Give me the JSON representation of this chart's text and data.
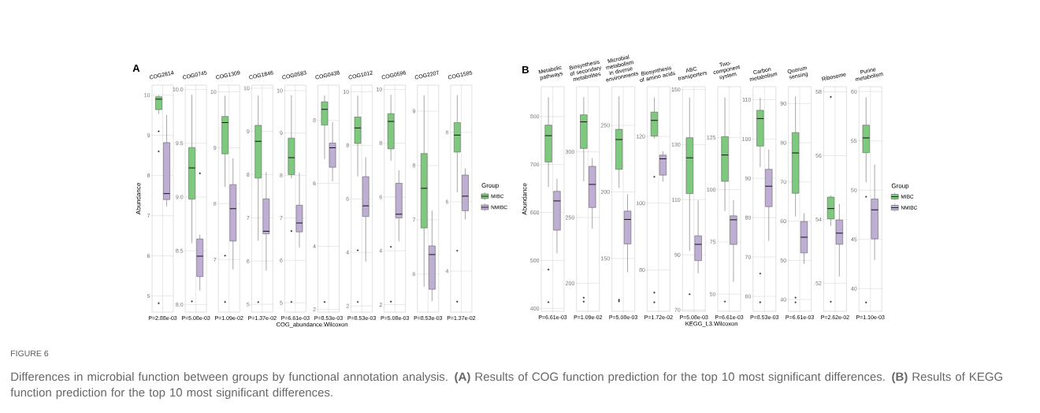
{
  "chart_data": [
    {
      "type": "box",
      "title": "COG2814",
      "ylabel": "Abundance",
      "annotations": [
        "A",
        "FIGURE 6",
        "Differences in microbial function between groups by functional annotation analysis. **(A)** Results of COG function prediction for the top 10 most significant differences. **(B)** Results of KEGG function prediction for the top 10 most significant differences."
      ],
      "categories": [
        "P=2.88e-03"
      ],
      "ylim": [
        4.6,
        10.25
      ],
      "yticks": [
        5,
        6,
        7,
        8,
        9,
        10
      ],
      "grid": true,
      "series": [
        {
          "color": "#7fc97f",
          "boxes": [
            {
              "low": 9.53,
              "q1": 9.64,
              "median": 9.9,
              "q3": 9.96,
              "high": 10.0,
              "outliers": [
                9.1,
                8.6,
                4.82
              ]
            }
          ]
        },
        {
          "color": "#beaed4",
          "boxes": [
            {
              "low": 7.23,
              "q1": 7.4,
              "median": 7.55,
              "q3": 8.82,
              "high": 9.51
            }
          ]
        }
      ]
    },
    {
      "type": "box",
      "title": "COG0745",
      "categories": [
        "P=5.08e-03"
      ],
      "ylim": [
        7.93,
        10.04
      ],
      "yticks": [
        {
          "value": 8,
          "label": "8.0"
        },
        {
          "value": 8.5,
          "label": "8.5"
        },
        {
          "value": 9,
          "label": "9.0"
        },
        {
          "value": 9.5,
          "label": "9.5"
        },
        {
          "value": 10,
          "label": "10.0"
        }
      ],
      "grid": true,
      "series": [
        {
          "color": "#7fc97f",
          "boxes": [
            {
              "low": 8.57,
              "q1": 8.98,
              "median": 9.27,
              "q3": 9.46,
              "high": 9.95,
              "outliers": [
                8.03
              ]
            }
          ]
        },
        {
          "color": "#beaed4",
          "boxes": [
            {
              "low": 8.13,
              "q1": 8.26,
              "median": 8.45,
              "q3": 8.61,
              "high": 8.65,
              "outliers": [
                9.22
              ]
            }
          ]
        }
      ]
    },
    {
      "type": "box",
      "title": "COG1309",
      "categories": [
        "P=1.09e-02"
      ],
      "ylim": [
        6.06,
        10.12
      ],
      "yticks": [
        7,
        8,
        9,
        10
      ],
      "grid": true,
      "series": [
        {
          "color": "#7fc97f",
          "boxes": [
            {
              "low": 8.3,
              "q1": 8.89,
              "median": 9.45,
              "q3": 9.56,
              "high": 9.93,
              "outliers": [
                7.07,
                6.24
              ]
            }
          ]
        },
        {
          "color": "#beaed4",
          "boxes": [
            {
              "low": 6.82,
              "q1": 7.33,
              "median": 7.91,
              "q3": 8.34,
              "high": 8.81
            }
          ]
        }
      ]
    },
    {
      "type": "box",
      "title": "COG1846",
      "categories": [
        "P=1.37e-02"
      ],
      "ylim": [
        4.82,
        10.07
      ],
      "yticks": [
        5,
        6,
        7,
        8,
        9,
        10
      ],
      "grid": true,
      "series": [
        {
          "color": "#7fc97f",
          "boxes": [
            {
              "low": 6.47,
              "q1": 7.92,
              "median": 8.77,
              "q3": 9.14,
              "high": 9.83,
              "outliers": [
                5.05
              ]
            }
          ]
        },
        {
          "color": "#beaed4",
          "boxes": [
            {
              "low": 5.78,
              "q1": 6.63,
              "median": 6.69,
              "q3": 7.44,
              "high": 8.06
            }
          ]
        }
      ]
    },
    {
      "type": "box",
      "title": "COG0583",
      "xlabel": "COG_abundance.Wilcoxon",
      "categories": [
        "P=6.61e-03"
      ],
      "ylim": [
        4.78,
        10.13
      ],
      "yticks": [
        5,
        6,
        7,
        8,
        9,
        10
      ],
      "grid": true,
      "series": [
        {
          "color": "#7fc97f",
          "boxes": [
            {
              "low": 7.93,
              "q1": 8.02,
              "median": 8.42,
              "q3": 8.88,
              "high": 9.89,
              "outliers": [
                6.69,
                5.02
              ]
            }
          ]
        },
        {
          "color": "#beaed4",
          "boxes": [
            {
              "low": 6.3,
              "q1": 6.67,
              "median": 6.88,
              "q3": 7.3,
              "high": 8.07
            }
          ]
        }
      ]
    },
    {
      "type": "box",
      "title": "COG0438",
      "categories": [
        "P=8.53e-03"
      ],
      "ylim": [
        1.91,
        9.12
      ],
      "yticks": [
        2,
        4,
        6,
        8
      ],
      "grid": true,
      "series": [
        {
          "color": "#7fc97f",
          "boxes": [
            {
              "low": 6.77,
              "q1": 7.85,
              "median": 8.35,
              "q3": 8.59,
              "high": 8.79,
              "outliers": [
                2.23
              ]
            }
          ]
        },
        {
          "color": "#beaed4",
          "boxes": [
            {
              "low": 6.06,
              "q1": 6.51,
              "median": 7.13,
              "q3": 7.28,
              "high": 7.95
            }
          ]
        }
      ]
    },
    {
      "type": "box",
      "title": "COG1012",
      "categories": [
        "P=8.53e-03"
      ],
      "ylim": [
        1.77,
        10.25
      ],
      "yticks": [
        2,
        4,
        6,
        8,
        10
      ],
      "grid": true,
      "series": [
        {
          "color": "#7fc97f",
          "boxes": [
            {
              "low": 6.84,
              "q1": 8.07,
              "median": 8.65,
              "q3": 9.06,
              "high": 9.86,
              "outliers": [
                4.08,
                2.15
              ]
            }
          ]
        },
        {
          "color": "#beaed4",
          "boxes": [
            {
              "low": 3.65,
              "q1": 5.34,
              "median": 5.74,
              "q3": 6.83,
              "high": 7.56
            }
          ]
        }
      ]
    },
    {
      "type": "box",
      "title": "COG0596",
      "categories": [
        "P=5.08e-03"
      ],
      "ylim": [
        1.72,
        10.16
      ],
      "yticks": [
        2,
        4,
        6,
        8,
        10
      ],
      "grid": true,
      "series": [
        {
          "color": "#7fc97f",
          "boxes": [
            {
              "low": 7.35,
              "q1": 7.79,
              "median": 8.81,
              "q3": 9.1,
              "high": 9.8,
              "outliers": [
                4.15,
                2.11
              ]
            }
          ]
        },
        {
          "color": "#beaed4",
          "boxes": [
            {
              "low": 4.35,
              "q1": 5.22,
              "median": 5.36,
              "q3": 6.51,
              "high": 7.0
            }
          ]
        }
      ]
    },
    {
      "type": "box",
      "title": "COG2207",
      "categories": [
        "P=8.53e-03"
      ],
      "ylim": [
        5.3,
        9.48
      ],
      "yticks": [
        6,
        7,
        8,
        9
      ],
      "grid": true,
      "series": [
        {
          "color": "#7fc97f",
          "boxes": [
            {
              "low": 5.77,
              "q1": 6.85,
              "median": 7.58,
              "q3": 8.22,
              "high": 9.29
            }
          ]
        },
        {
          "color": "#beaed4",
          "boxes": [
            {
              "low": 5.5,
              "q1": 5.72,
              "median": 6.36,
              "q3": 6.52,
              "high": 7.17
            }
          ]
        }
      ]
    },
    {
      "type": "box",
      "title": "COG1595",
      "categories": [
        "P=1.37e-02"
      ],
      "ylim": [
        2.82,
        9.36
      ],
      "yticks": [
        4,
        6,
        8
      ],
      "grid": true,
      "legend": "right",
      "legend_title": "Group",
      "series": [
        {
          "name": "MIBC",
          "color": "#7fc97f",
          "boxes": [
            {
              "low": 6.27,
              "q1": 7.43,
              "median": 7.92,
              "q3": 8.28,
              "high": 9.07,
              "outliers": [
                4.59,
                3.12
              ]
            }
          ]
        },
        {
          "name": "NMIBC",
          "color": "#beaed4",
          "boxes": [
            {
              "low": 5.49,
              "q1": 5.74,
              "median": 6.16,
              "q3": 6.77,
              "high": 6.96
            }
          ]
        }
      ]
    },
    {
      "type": "box",
      "title": "Metabolic pathways",
      "ylabel": "Abundance",
      "annotations": [
        "B"
      ],
      "categories": [
        "P=6.61e-03"
      ],
      "ylim": [
        394,
        862
      ],
      "yticks": [
        400,
        500,
        600,
        700,
        800
      ],
      "grid": true,
      "series": [
        {
          "color": "#7fc97f",
          "boxes": [
            {
              "low": 653,
              "q1": 705,
              "median": 760,
              "q3": 782,
              "high": 840,
              "outliers": [
                481,
                413
              ]
            }
          ]
        },
        {
          "color": "#beaed4",
          "boxes": [
            {
              "low": 515,
              "q1": 563,
              "median": 624,
              "q3": 644,
              "high": 670
            }
          ]
        }
      ]
    },
    {
      "type": "box",
      "title": "Biosynthesis of secondary metabolites",
      "categories": [
        "P=1.09e-02"
      ],
      "ylim": [
        178.6,
        349.6
      ],
      "yticks": [
        200,
        250,
        300
      ],
      "grid": true,
      "series": [
        {
          "color": "#7fc97f",
          "boxes": [
            {
              "low": 277.6,
              "q1": 302.6,
              "median": 322.8,
              "q3": 328.2,
              "high": 341.6,
              "outliers": [
                189,
                186
              ]
            }
          ]
        },
        {
          "color": "#beaed4",
          "boxes": [
            {
              "low": 241.6,
              "q1": 257.6,
              "median": 275.2,
              "q3": 289,
              "high": 295.2
            }
          ]
        }
      ]
    },
    {
      "type": "box",
      "title": "Microbial metabolism in diverse environments",
      "categories": [
        "P=5.08e-03"
      ],
      "ylim": [
        110.3,
        279
      ],
      "yticks": [
        150,
        200,
        250
      ],
      "grid": true,
      "series": [
        {
          "color": "#7fc97f",
          "boxes": [
            {
              "low": 202.9,
              "q1": 216.9,
              "median": 239.3,
              "q3": 247,
              "high": 271.9,
              "outliers": [
                118.9,
                117.8
              ]
            }
          ]
        },
        {
          "color": "#beaed4",
          "boxes": [
            {
              "low": 139.7,
              "q1": 160.9,
              "median": 179.3,
              "q3": 185.6,
              "high": 198.2
            }
          ]
        }
      ]
    },
    {
      "type": "box",
      "title": "Biosynthesis of amino acids",
      "categories": [
        "P=1.72e-02"
      ],
      "ylim": [
        67.6,
        134.9
      ],
      "yticks": [
        80,
        100,
        120
      ],
      "grid": true,
      "series": [
        {
          "color": "#7fc97f",
          "boxes": [
            {
              "low": 119.4,
              "q1": 120.1,
              "median": 124.8,
              "q3": 127.3,
              "high": 131.7,
              "outliers": [
                107.9,
                73.2,
                70.3
              ]
            }
          ]
        },
        {
          "color": "#beaed4",
          "boxes": [
            {
              "low": 106.4,
              "q1": 108.4,
              "median": 113.3,
              "q3": 114.4,
              "high": 115.6
            }
          ]
        }
      ]
    },
    {
      "type": "box",
      "title": "ABC transporters",
      "xlabel": "KEGG_L3.Wilcoxon",
      "categories": [
        "P=5.08e-03"
      ],
      "ylim": [
        69.5,
        151
      ],
      "yticks": [
        70,
        90,
        110,
        130,
        150
      ],
      "grid": true,
      "series": [
        {
          "color": "#7fc97f",
          "boxes": [
            {
              "low": 91.4,
              "q1": 112.2,
              "median": 125.2,
              "q3": 132.5,
              "high": 147.1,
              "outliers": [
                75.7
              ]
            }
          ]
        },
        {
          "color": "#beaed4",
          "boxes": [
            {
              "low": 83.3,
              "q1": 87.9,
              "median": 93.8,
              "q3": 96.9,
              "high": 109.8
            }
          ]
        }
      ]
    },
    {
      "type": "box",
      "title": "Two-component system",
      "categories": [
        "P=6.61e-03"
      ],
      "ylim": [
        41.8,
        149.3
      ],
      "yticks": [
        50,
        75,
        100,
        125
      ],
      "grid": true,
      "series": [
        {
          "color": "#7fc97f",
          "boxes": [
            {
              "low": 89.8,
              "q1": 104,
              "median": 116.6,
              "q3": 125.4,
              "high": 144.2,
              "outliers": [
                46.5
              ]
            }
          ]
        },
        {
          "color": "#beaed4",
          "boxes": [
            {
              "low": 55.9,
              "q1": 73.8,
              "median": 85.6,
              "q3": 87.5,
              "high": 95
            }
          ]
        }
      ]
    },
    {
      "type": "box",
      "title": "Carbon metabolism",
      "categories": [
        "P=8.53e-03"
      ],
      "ylim": [
        56.2,
        113.3
      ],
      "yticks": [
        60,
        70,
        80,
        90,
        100,
        110
      ],
      "grid": true,
      "series": [
        {
          "color": "#7fc97f",
          "boxes": [
            {
              "low": 92.9,
              "q1": 98.2,
              "median": 105.2,
              "q3": 107.3,
              "high": 110.5,
              "outliers": [
                65.8,
                58.5
              ]
            }
          ]
        },
        {
          "color": "#beaed4",
          "boxes": [
            {
              "low": 74.1,
              "q1": 82.8,
              "median": 88,
              "q3": 92.3,
              "high": 97.3
            }
          ]
        }
      ]
    },
    {
      "type": "box",
      "title": "Quorum sensing",
      "categories": [
        "P=6.61e-03"
      ],
      "ylim": [
        37,
        94.3
      ],
      "yticks": [
        40,
        50,
        60,
        70,
        80,
        90
      ],
      "grid": true,
      "series": [
        {
          "color": "#7fc97f",
          "boxes": [
            {
              "low": 61.2,
              "q1": 67.1,
              "median": 77.4,
              "q3": 82.6,
              "high": 91.8,
              "outliers": [
                40.5,
                39.3
              ]
            }
          ]
        },
        {
          "color": "#beaed4",
          "boxes": [
            {
              "low": 49.1,
              "q1": 51.9,
              "median": 55.9,
              "q3": 59.9,
              "high": 62
            }
          ]
        }
      ]
    },
    {
      "type": "box",
      "title": "Ribosome",
      "categories": [
        "P=2.62e-02"
      ],
      "ylim": [
        51.12,
        58.16
      ],
      "yticks": [
        52,
        54,
        56,
        58
      ],
      "grid": true,
      "series": [
        {
          "color": "#7fc97f",
          "boxes": [
            {
              "low": 53.8,
              "q1": 54.02,
              "median": 54.34,
              "q3": 54.7,
              "high": 54.76,
              "outliers": [
                57.84,
                51.42
              ]
            }
          ]
        },
        {
          "color": "#beaed4",
          "boxes": [
            {
              "low": 52.21,
              "q1": 53.22,
              "median": 53.57,
              "q3": 53.98,
              "high": 54.49
            }
          ]
        }
      ]
    },
    {
      "type": "box",
      "title": "Purine metabolism",
      "categories": [
        "P=1.10e-03"
      ],
      "ylim": [
        37.7,
        60.5
      ],
      "yticks": [
        40,
        45,
        50,
        55,
        60
      ],
      "grid": true,
      "legend": "right",
      "legend_title": "Group",
      "series": [
        {
          "name": "MIBC",
          "color": "#7fc97f",
          "boxes": [
            {
              "low": 50.8,
              "q1": 53.8,
              "median": 55.3,
              "q3": 56.6,
              "high": 59.41,
              "outliers": [
                49.33,
                38.6
              ]
            }
          ]
        },
        {
          "name": "NMIBC",
          "color": "#beaed4",
          "boxes": [
            {
              "low": 42.9,
              "q1": 45.05,
              "median": 48,
              "q3": 49.1,
              "high": 52.6
            }
          ]
        }
      ]
    }
  ]
}
